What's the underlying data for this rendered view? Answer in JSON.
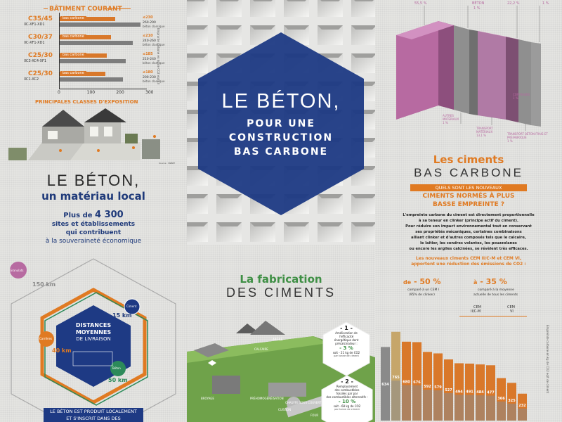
{
  "tile1": {
    "heading": "BÂTIMENT COURANT",
    "rows": [
      {
        "klass": "C35/45",
        "sub": "XC-XF1-XD1",
        "pill": "bas carbone",
        "value_bc": "≤230",
        "value_classic": "260-290",
        "classic_label": "béton classique",
        "bc": 190,
        "classic": 275
      },
      {
        "klass": "C30/37",
        "sub": "XC-XF1-XD1",
        "pill": "bas carbone",
        "value_bc": "≤210",
        "value_classic": "240-260",
        "classic_label": "béton classique",
        "bc": 175,
        "classic": 250
      },
      {
        "klass": "C25/30",
        "sub": "XC3-XC4-XF1",
        "pill": "bas carbone",
        "value_bc": "≤185",
        "value_classic": "210-240",
        "classic_label": "béton classique",
        "bc": 160,
        "classic": 225
      },
      {
        "klass": "C25/30",
        "sub": "XC1-XC2",
        "pill": "bas carbone",
        "value_bc": "≤180",
        "value_classic": "200-230",
        "classic_label": "béton classique",
        "bc": 155,
        "classic": 215
      }
    ],
    "axis_ticks": [
      "0",
      "100",
      "200",
      "300"
    ],
    "axis_max": 300,
    "side_label": "Emprunte carbone en kg de CO2 eq/m3",
    "exposure_heading": "PRINCIPALES CLASSES D'EXPOSITION",
    "source": "Source : SNBPE"
  },
  "tile2": {
    "line1": "LE BÉTON,",
    "line2": "POUR UNE",
    "line3": "CONSTRUCTION",
    "line4": "BAS CARBONE"
  },
  "tile3": {
    "top_labels": [
      {
        "label": "",
        "value": "55,5 %"
      },
      {
        "label": "BÉTON",
        "value": "1 %"
      },
      {
        "label": "",
        "value": "22,2 %"
      },
      {
        "label": "",
        "value": "1 %"
      }
    ],
    "bottom_labels": [
      {
        "label": "AUTRES MATÉRIAUX",
        "value": "1 %"
      },
      {
        "label": "TRANSPORT MATÉRIAUX",
        "value": "13,1 %"
      },
      {
        "label": "COFFRAGES",
        "value": "1 %"
      },
      {
        "label": "TRANSPORT BÉTON FRAIS ET PRÉFABRIQUÉ",
        "value": "1 %"
      }
    ]
  },
  "tile4": {
    "title1": "LE BÉTON,",
    "title2": "un matériau local",
    "stat_prefix": "Plus de",
    "stat_number": "4 300",
    "stat_line2": "sites et établissements",
    "stat_line3": "qui contribuent",
    "stat_line4": "à la souveraineté économique",
    "center1": "DISTANCES",
    "center2": "MOYENNES",
    "center3": "DE LIVRAISON",
    "km_150": "150 km",
    "km_15": "15 km",
    "km_40": "40 km",
    "km_50": "50 km",
    "badge_top": "Granulats",
    "badge_right": "Ciment",
    "badge_left": "Carrières",
    "badge_right2": "Béton",
    "banner1": "LE BÉTON EST PRODUIT LOCALEMENT",
    "banner2": "ET S'INSCRIT DANS DES"
  },
  "tile5": {
    "title1": "La fabrication",
    "title2": "DES CIMENTS",
    "step1_num": "- 1 -",
    "step1_l1": "Amélioration de",
    "step1_l2": "l'efficacité",
    "step1_l3": "énergétique dont",
    "step1_l4": "précalcinateur :",
    "step1_pct": "- 3 %",
    "step1_l5": "soit - 21 kg de CO2",
    "step1_l6": "par tonne de ciment",
    "step2_num": "- 2 -",
    "step2_l1": "Remplacement",
    "step2_l2": "des combustibles",
    "step2_l3": "fossiles par par",
    "step2_l4": "des combustibles alternatifs :",
    "step2_pct": "- 10 %",
    "step2_l5": "soit - 68 kg de CO2",
    "step2_l6": "par tonne de ciment",
    "lbl_a": "ARGILE",
    "lbl_b": "CALCAIRE",
    "lbl_c": "PRÉHOMOGÉNÉISATION",
    "lbl_d": "BROYAGE",
    "lbl_e": "CUISSON",
    "lbl_f": "FOUR",
    "lbl_g": "CHAUFFE SOUS COUVERT"
  },
  "tile6": {
    "title1": "Les ciments",
    "title2": "BAS CARBONE",
    "q_line1": "QUELS SONT LES NOUVEAUX",
    "q_line2": "CIMENTS NORMÉS À PLUS",
    "q_line3": "BASSE EMPREINTE ?",
    "body": [
      "L'empreinte carbone du ciment est directement proportionnelle",
      "à sa teneur en clinker (principe actif du ciment).",
      "Pour réduire son impact environnemental tout en conservant",
      "ses propriétés mécaniques, certaines combinaisons",
      "alliant clinker et d'autres composés tels que le calcaire,",
      "le laitier, les cendres volantes, les pouzzolanes",
      "ou encore les argiles calcinées, se révèlent très efficaces."
    ],
    "orange1": "Les nouveaux ciments CEM II/C-M et CEM VI,",
    "orange2": "apportent une réduction des émissions de CO2 :",
    "left_prefix": "de",
    "left_pct": "- 50 %",
    "left_sub1": "comparé à un CEM I",
    "left_sub2": "(95% de clinker)",
    "right_prefix": "à",
    "right_pct": "- 35 %",
    "right_sub1": "comparé à la moyenne",
    "right_sub2": "actuelle de tous les ciments",
    "cem1": "CEM",
    "cem1b": "II/C-M",
    "cem2": "CEM",
    "cem2b": "VI",
    "side_label": "Empreinte carbone en kg de CO2 eq/t de ciment"
  },
  "chart_data": {
    "type": "bar",
    "title": "",
    "xlabel": "",
    "ylabel": "Empreinte carbone en kg de CO2 eq/t de ciment",
    "categories": [
      "1",
      "2",
      "3",
      "4",
      "5",
      "6",
      "7",
      "8",
      "9",
      "10",
      "11",
      "12",
      "13",
      "14",
      "15"
    ],
    "values": [
      634,
      765,
      680,
      676,
      592,
      579,
      527,
      494,
      491,
      484,
      477,
      366,
      325,
      232,
      0
    ],
    "labels": [
      "634",
      "765",
      "680",
      "676",
      "592",
      "579",
      "527",
      "494",
      "491",
      "484",
      "477",
      "366",
      "325",
      "232"
    ],
    "ylim": [
      0,
      800
    ],
    "colors": {
      "first": "#8a8a8a",
      "second": "#c6a66a",
      "rest": "#d9782a"
    },
    "grid": false,
    "legend": "none"
  }
}
